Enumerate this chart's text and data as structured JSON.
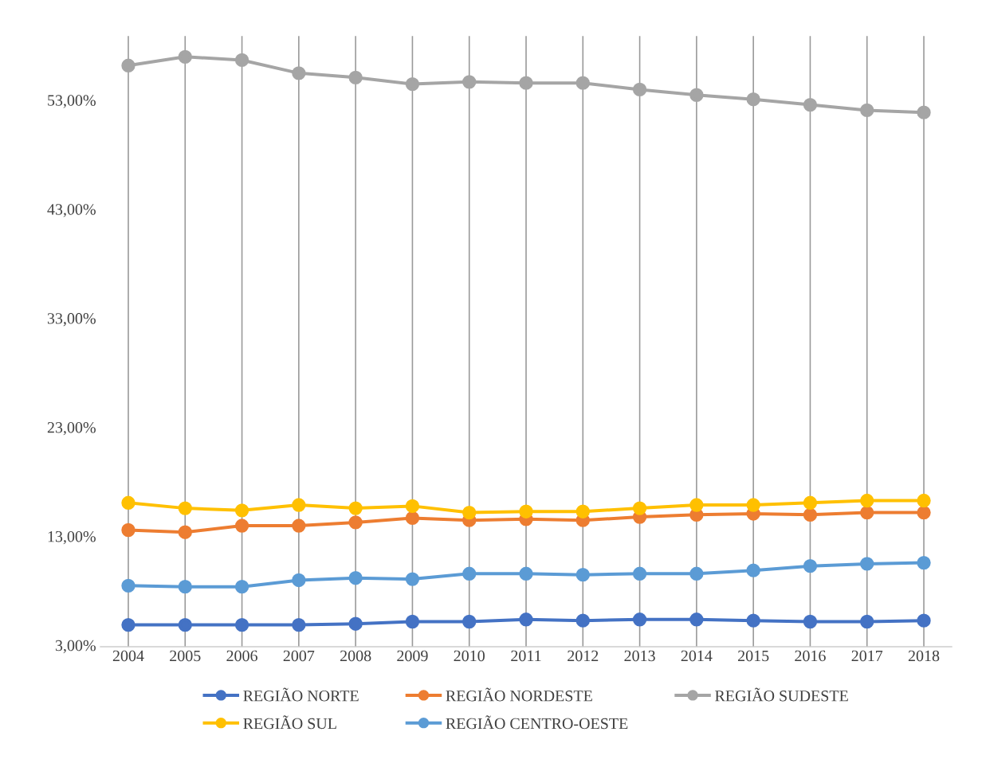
{
  "chart_data": {
    "type": "line",
    "categories": [
      "2004",
      "2005",
      "2006",
      "2007",
      "2008",
      "2009",
      "2010",
      "2011",
      "2012",
      "2013",
      "2014",
      "2015",
      "2016",
      "2017",
      "2018"
    ],
    "series": [
      {
        "name": "REGIÃO NORTE",
        "color": "#4472c4",
        "values": [
          5.0,
          5.0,
          5.0,
          5.0,
          5.1,
          5.3,
          5.3,
          5.5,
          5.4,
          5.5,
          5.5,
          5.4,
          5.3,
          5.3,
          5.4
        ]
      },
      {
        "name": "REGIÃO NORDESTE",
        "color": "#ed7d31",
        "values": [
          13.7,
          13.5,
          14.1,
          14.1,
          14.4,
          14.8,
          14.6,
          14.7,
          14.6,
          14.9,
          15.1,
          15.2,
          15.1,
          15.3,
          15.3
        ]
      },
      {
        "name": "REGIÃO SUDESTE",
        "color": "#a5a5a5",
        "values": [
          56.3,
          57.1,
          56.8,
          55.6,
          55.2,
          54.6,
          54.8,
          54.7,
          54.7,
          54.1,
          53.6,
          53.2,
          52.7,
          52.2,
          52.0
        ]
      },
      {
        "name": "REGIÃO SUL",
        "color": "#ffc000",
        "values": [
          16.2,
          15.7,
          15.5,
          16.0,
          15.7,
          15.9,
          15.3,
          15.4,
          15.4,
          15.7,
          16.0,
          16.0,
          16.2,
          16.4,
          16.4
        ]
      },
      {
        "name": "REGIÃO CENTRO-OESTE",
        "color": "#5b9bd5",
        "values": [
          8.6,
          8.5,
          8.5,
          9.1,
          9.3,
          9.2,
          9.7,
          9.7,
          9.6,
          9.7,
          9.7,
          10.0,
          10.4,
          10.6,
          10.7
        ]
      }
    ],
    "ylim": [
      3,
      59
    ],
    "yticks": [
      {
        "value": 3,
        "label": "3,00%"
      },
      {
        "value": 13,
        "label": "13,00%"
      },
      {
        "value": 23,
        "label": "23,00%"
      },
      {
        "value": 33,
        "label": "33,00%"
      },
      {
        "value": 43,
        "label": "43,00%"
      },
      {
        "value": 53,
        "label": "53,00%"
      }
    ],
    "grid": "x",
    "legend": "bottom",
    "marker": "circle",
    "line_style": "solid"
  }
}
